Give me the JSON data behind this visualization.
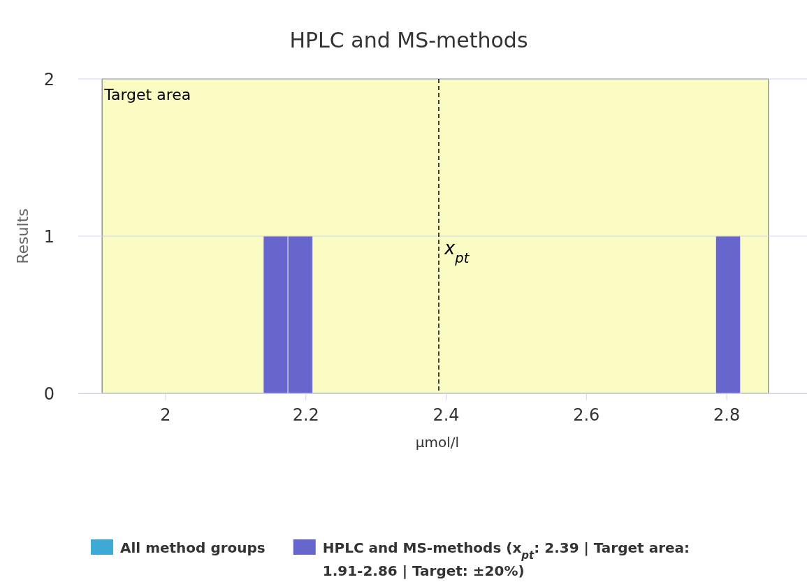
{
  "chart_data": {
    "type": "histogram",
    "title": "HPLC and MS-methods",
    "xlabel": "µmol/l",
    "ylabel": "Results",
    "bins": [
      2.14,
      2.175,
      2.21,
      2.785,
      2.82
    ],
    "series": [
      {
        "name": "HPLC and MS-methods (x$_{pt}$: 2.39 | Target area: 1.91-2.86 | Target: ±20%)",
        "color": "#6666cc",
        "values": [
          1,
          1,
          0,
          1
        ]
      }
    ],
    "xlim": [
      1.876,
      2.915
    ],
    "xticks": [
      2,
      2.2,
      2.4,
      2.6,
      2.8
    ],
    "ylim": [
      0,
      2
    ],
    "yticks": [
      0,
      1,
      2
    ],
    "grid": "y",
    "legend": "bottom",
    "annotations": [
      "All method groups"
    ],
    "bands": [
      {
        "axis": "x",
        "from": 1.91,
        "to": 2.86,
        "label": "Target area",
        "color": "#fafcc4"
      }
    ],
    "ref_lines": [
      {
        "axis": "x",
        "value": 2.39,
        "label": "x$_{pt}$",
        "line_style": "dashed",
        "color": "#000000"
      }
    ]
  }
}
